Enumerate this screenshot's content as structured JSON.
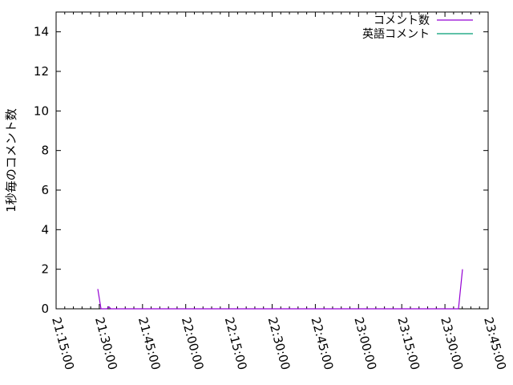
{
  "chart_data": {
    "type": "line",
    "title": "",
    "xlabel": "",
    "ylabel": "1秒毎のコメント数",
    "xlim": [
      "21:15:00",
      "23:45:00"
    ],
    "ylim": [
      0,
      15
    ],
    "x_ticks": [
      "21:15:00",
      "21:30:00",
      "21:45:00",
      "22:00:00",
      "22:15:00",
      "22:30:00",
      "22:45:00",
      "23:00:00",
      "23:15:00",
      "23:30:00",
      "23:45:00"
    ],
    "y_ticks": [
      "0",
      "2",
      "4",
      "6",
      "8",
      "10",
      "12",
      "14"
    ],
    "grid": false,
    "legend": "top-right",
    "series": [
      {
        "name": "コメント数",
        "color": "#9400d3",
        "points": [
          {
            "x": "21:29:28",
            "y": 1
          },
          {
            "x": "21:30:35",
            "y": 0
          },
          {
            "x": "21:32:40",
            "y": 0
          },
          {
            "x": "21:33:20",
            "y": 0.1
          },
          {
            "x": "21:34:00",
            "y": 0
          },
          {
            "x": "23:34:42",
            "y": 0
          },
          {
            "x": "23:36:06",
            "y": 2
          }
        ]
      },
      {
        "name": "英語コメント",
        "color": "#009e73",
        "points": []
      }
    ]
  }
}
